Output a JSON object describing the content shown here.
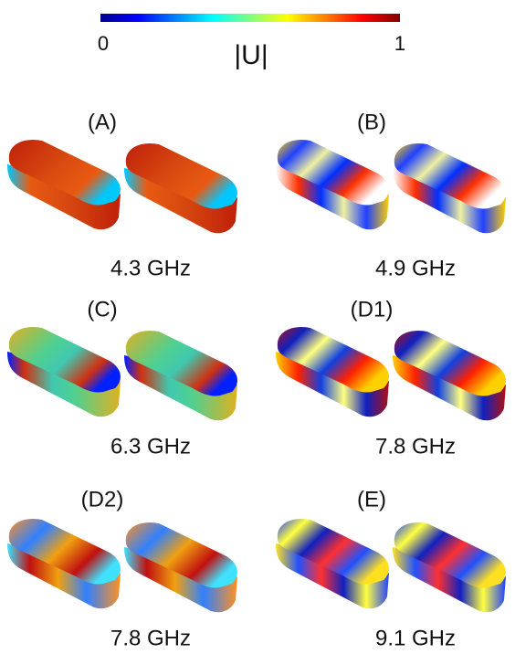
{
  "colorbar": {
    "min": 0,
    "max": 1,
    "label": "|U|"
  },
  "panels": [
    {
      "label": "(A)",
      "frequency": "4.3 GHz"
    },
    {
      "label": "(B)",
      "frequency": "4.9 GHz"
    },
    {
      "label": "(C)",
      "frequency": "6.3 GHz"
    },
    {
      "label": "(D1)",
      "frequency": "7.8 GHz"
    },
    {
      "label": "(D2)",
      "frequency": "7.8 GHz"
    },
    {
      "label": "(E)",
      "frequency": "9.1 GHz"
    }
  ]
}
